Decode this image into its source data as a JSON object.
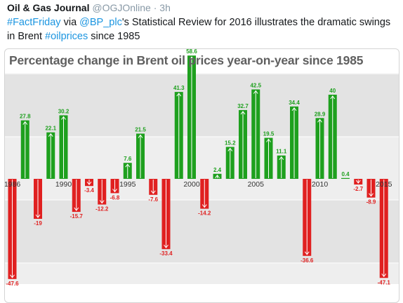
{
  "tweet": {
    "author_name": "Oil & Gas Journal",
    "handle": "@OGJOnline",
    "separator": "·",
    "time": "3h",
    "text_parts": [
      {
        "text": "#FactFriday",
        "link": true
      },
      {
        "text": " via ",
        "link": false
      },
      {
        "text": "@BP_plc",
        "link": true
      },
      {
        "text": "'s Statistical Review for 2016 illustrates the dramatic swings in Brent ",
        "link": false
      },
      {
        "text": "#oilprices",
        "link": true
      },
      {
        "text": " since 1985",
        "link": false
      }
    ]
  },
  "colors": {
    "positive": "#1ea01e",
    "negative": "#e02020",
    "link": "#1b95e0",
    "title": "#5f5f5f"
  },
  "chart_data": {
    "type": "bar",
    "title": "Percentage change in Brent oil prices year-on-year since 1985",
    "xlabel": "",
    "ylabel": "",
    "ylim": [
      -50,
      65
    ],
    "x_tick_labels": [
      "1986",
      "1990",
      "1995",
      "2000",
      "2005",
      "2010",
      "2015"
    ],
    "grid": true,
    "categories": [
      "1986",
      "1987",
      "1988",
      "1989",
      "1990",
      "1991",
      "1992",
      "1993",
      "1994",
      "1995",
      "1996",
      "1997",
      "1998",
      "1999",
      "2000",
      "2001",
      "2002",
      "2003",
      "2004",
      "2005",
      "2006",
      "2007",
      "2008",
      "2009",
      "2010",
      "2011",
      "2012",
      "2013",
      "2014",
      "2015"
    ],
    "values": [
      -47.6,
      27.8,
      -19,
      22.1,
      30.2,
      -15.7,
      -3.4,
      -12.2,
      -6.8,
      7.6,
      21.5,
      -7.6,
      -33.4,
      41.3,
      58.6,
      -14.2,
      2.4,
      15.2,
      32.7,
      42.5,
      19.5,
      11.1,
      34.4,
      -36.6,
      28.9,
      40,
      0.4,
      -2.7,
      -8.9,
      -47.1
    ]
  }
}
